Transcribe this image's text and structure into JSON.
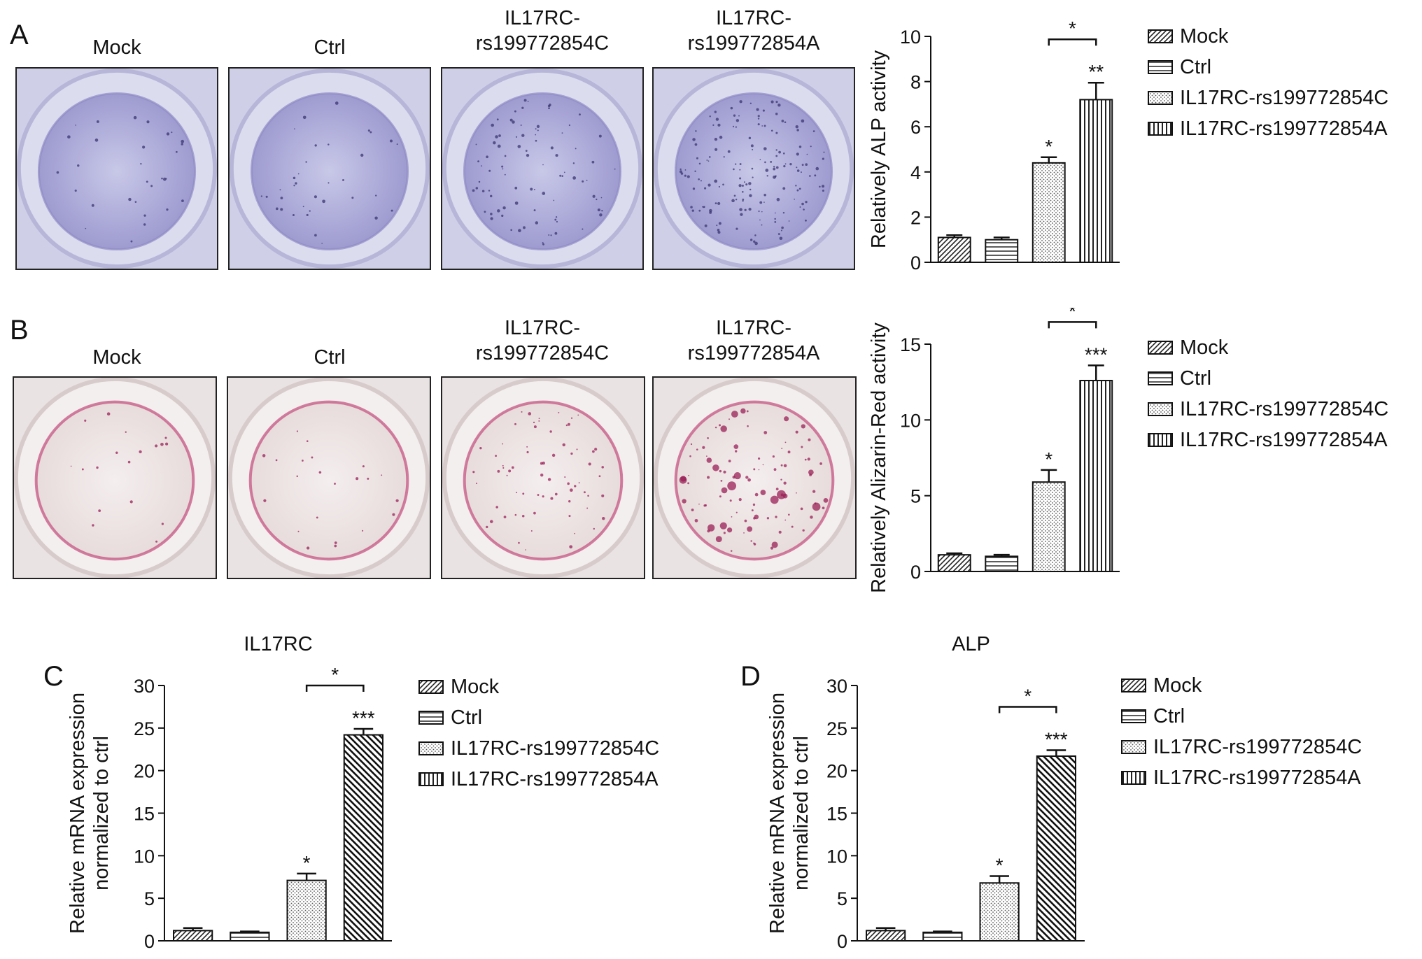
{
  "panels": {
    "A": {
      "letter": "A",
      "images": [
        {
          "label": "Mock"
        },
        {
          "label": "Ctrl"
        },
        {
          "label": "IL17RC-\nrs199772854C"
        },
        {
          "label": "IL17RC-\nrs199772854A"
        }
      ]
    },
    "B": {
      "letter": "B",
      "images": [
        {
          "label": "Mock"
        },
        {
          "label": "Ctrl"
        },
        {
          "label": "IL17RC-\nrs199772854C"
        },
        {
          "label": "IL17RC-\nrs199772854A"
        }
      ]
    },
    "C": {
      "letter": "C"
    },
    "D": {
      "letter": "D"
    }
  },
  "legend": [
    "Mock",
    "Ctrl",
    "IL17RC-rs199772854C",
    "IL17RC-rs199772854A"
  ],
  "colors": {
    "alp_stain": "#8a86c8",
    "alizarin_stain": "#c24a7a",
    "axis": "#111111"
  },
  "chart_data": [
    {
      "id": "A",
      "type": "bar",
      "title": "",
      "ylabel": "Relatively ALP activity",
      "ylim": [
        0,
        10
      ],
      "yticks": [
        0,
        2,
        4,
        6,
        8,
        10
      ],
      "categories": [
        "Mock",
        "Ctrl",
        "IL17RC-rs199772854C",
        "IL17RC-rs199772854A"
      ],
      "values": [
        1.1,
        1.0,
        4.4,
        7.2
      ],
      "errors": [
        0.1,
        0.1,
        0.25,
        0.75
      ],
      "stars": [
        "",
        "",
        "*",
        "**"
      ],
      "bracket": {
        "from": 2,
        "to": 3,
        "label": "*"
      },
      "patterns": [
        "diag-right",
        "horiz",
        "dots",
        "vert"
      ]
    },
    {
      "id": "B",
      "type": "bar",
      "title": "",
      "ylabel": "Relatively Alizarin-Red activity",
      "ylim": [
        0,
        15
      ],
      "yticks": [
        0,
        5,
        10,
        15
      ],
      "categories": [
        "Mock",
        "Ctrl",
        "IL17RC-rs199772854C",
        "IL17RC-rs199772854A"
      ],
      "values": [
        1.1,
        1.0,
        5.9,
        12.6
      ],
      "errors": [
        0.1,
        0.1,
        0.8,
        1.0
      ],
      "stars": [
        "",
        "",
        "*",
        "***"
      ],
      "bracket": {
        "from": 2,
        "to": 3,
        "label": "*"
      },
      "patterns": [
        "diag-right",
        "horiz",
        "dots",
        "vert"
      ]
    },
    {
      "id": "C",
      "type": "bar",
      "title": "IL17RC",
      "ylabel": "Relative mRNA expression\nnormalized to ctrl",
      "ylim": [
        0,
        30
      ],
      "yticks": [
        0,
        5,
        10,
        15,
        20,
        25,
        30
      ],
      "categories": [
        "Mock",
        "Ctrl",
        "IL17RC-rs199772854C",
        "IL17RC-rs199772854A"
      ],
      "values": [
        1.2,
        1.0,
        7.1,
        24.2
      ],
      "errors": [
        0.3,
        0.1,
        0.8,
        0.7
      ],
      "stars": [
        "",
        "",
        "*",
        "***"
      ],
      "bracket": {
        "from": 2,
        "to": 3,
        "label": "*"
      },
      "patterns": [
        "diag-right",
        "horiz",
        "dots",
        "diag-left"
      ]
    },
    {
      "id": "D",
      "type": "bar",
      "title": "ALP",
      "ylabel": "Relative mRNA expression\nnormalized to ctrl",
      "ylim": [
        0,
        30
      ],
      "yticks": [
        0,
        5,
        10,
        15,
        20,
        25,
        30
      ],
      "categories": [
        "Mock",
        "Ctrl",
        "IL17RC-rs199772854C",
        "IL17RC-rs199772854A"
      ],
      "values": [
        1.2,
        1.0,
        6.8,
        21.7
      ],
      "errors": [
        0.3,
        0.1,
        0.8,
        0.7
      ],
      "stars": [
        "",
        "",
        "*",
        "***"
      ],
      "bracket": {
        "from": 2,
        "to": 3,
        "label": "*"
      },
      "patterns": [
        "diag-right",
        "horiz",
        "dots",
        "diag-left"
      ]
    }
  ]
}
